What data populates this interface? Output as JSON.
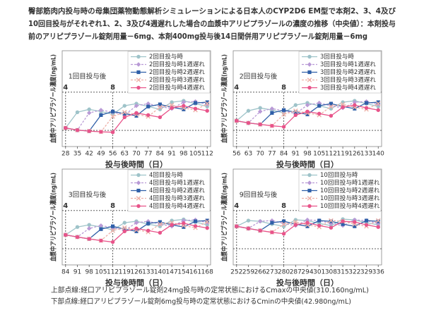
{
  "title": [
    "臀部筋肉内投与時の母集団薬物動態解析シミュレーションによる日本人のCYP2D6 EM型で本剤2、3、4及び",
    "10回目投与がそれぞれ1、2、3及び4週遅れした場合の血漿中アリピプラゾールの濃度の推移（中央値）：本剤投与",
    "前のアリピプラゾール錠剤用量－6mg、本剤400mg投与後14日間併用アリピプラゾール錠剤用量－6mg"
  ],
  "chart_data": [
    {
      "type": "line",
      "annotation": "1回目投与後",
      "ylabel": "血漿中アリピプラゾール濃度(ng/mL)",
      "xlabel": "投与後時間（日）",
      "x": [
        28,
        35,
        42,
        49,
        56,
        63,
        70,
        77,
        84,
        91,
        98,
        105,
        112
      ],
      "xticks": [
        28,
        35,
        42,
        49,
        56,
        63,
        70,
        77,
        84,
        91,
        98,
        105,
        112
      ],
      "xlim": [
        26,
        114
      ],
      "ylim": [
        -70,
        600
      ],
      "hlines": [
        310.16,
        42.98
      ],
      "vlines": [
        {
          "value": 28,
          "label": "4"
        },
        {
          "value": 56,
          "label": "8"
        }
      ],
      "series": [
        {
          "name": "2回目投与時",
          "color": "#9ec3c9",
          "marker": "circle",
          "dash": false,
          "values": [
            60,
            170,
            190,
            175,
            155,
            215,
            230,
            210,
            190,
            240,
            250,
            230,
            210
          ]
        },
        {
          "name": "2回目投与時1週遅れ",
          "color": "#b99ad6",
          "marker": "diamond",
          "dash": true,
          "values": [
            60,
            45,
            165,
            185,
            170,
            150,
            215,
            230,
            210,
            195,
            240,
            245,
            225
          ]
        },
        {
          "name": "2回目投与時2週遅れ",
          "color": "#2f5fa8",
          "marker": "square",
          "dash": false,
          "values": [
            60,
            45,
            38,
            150,
            175,
            160,
            145,
            210,
            225,
            205,
            190,
            235,
            240
          ]
        },
        {
          "name": "2回目投与時3週遅れ",
          "color": "#eeb1a8",
          "marker": "x",
          "dash": true,
          "values": [
            60,
            45,
            38,
            33,
            140,
            170,
            155,
            140,
            205,
            220,
            200,
            185,
            230
          ]
        },
        {
          "name": "2回目投与時4週遅れ",
          "color": "#e8548a",
          "marker": "circle",
          "dash": false,
          "values": [
            60,
            45,
            38,
            33,
            30,
            135,
            165,
            150,
            135,
            200,
            215,
            195,
            180
          ]
        }
      ]
    },
    {
      "type": "line",
      "annotation": "2回目投与後",
      "ylabel": "血漿中アリピプラゾール濃度(ng/mL)",
      "xlabel": "投与後時間（日）",
      "x": [
        56,
        63,
        70,
        77,
        84,
        91,
        98,
        105,
        112,
        119,
        126,
        133,
        140
      ],
      "xticks": [
        56,
        63,
        70,
        77,
        84,
        91,
        98,
        105,
        112,
        119,
        126,
        133,
        140
      ],
      "xlim": [
        54,
        142
      ],
      "ylim": [
        -70,
        600
      ],
      "hlines": [
        310.16,
        42.98
      ],
      "vlines": [
        {
          "value": 56,
          "label": "4"
        },
        {
          "value": 84,
          "label": "8"
        }
      ],
      "series": [
        {
          "name": "3回目投与時",
          "color": "#9ec3c9",
          "marker": "circle",
          "dash": false,
          "values": [
            110,
            180,
            200,
            185,
            165,
            220,
            235,
            215,
            195,
            240,
            250,
            230,
            210
          ]
        },
        {
          "name": "3回目投与時1週遅れ",
          "color": "#b99ad6",
          "marker": "diamond",
          "dash": true,
          "values": [
            110,
            95,
            175,
            195,
            180,
            160,
            220,
            235,
            215,
            200,
            240,
            245,
            225
          ]
        },
        {
          "name": "3回目投与時2週遅れ",
          "color": "#2f5fa8",
          "marker": "square",
          "dash": false,
          "values": [
            110,
            95,
            85,
            165,
            185,
            170,
            155,
            215,
            230,
            210,
            195,
            235,
            240
          ]
        },
        {
          "name": "3回目投与時3週遅れ",
          "color": "#eeb1a8",
          "marker": "x",
          "dash": true,
          "values": [
            110,
            95,
            85,
            75,
            155,
            180,
            165,
            150,
            210,
            225,
            205,
            190,
            230
          ]
        },
        {
          "name": "3回目投与時4週遅れ",
          "color": "#e8548a",
          "marker": "circle",
          "dash": false,
          "values": [
            110,
            95,
            85,
            75,
            68,
            150,
            175,
            160,
            145,
            205,
            220,
            200,
            185
          ]
        }
      ]
    },
    {
      "type": "line",
      "annotation": "3回目投与後",
      "ylabel": "血漿中アリピプラゾール濃度(ng/mL)",
      "xlabel": "投与後時間（日）",
      "x": [
        84,
        91,
        98,
        105,
        112,
        119,
        126,
        133,
        140,
        147,
        154,
        161,
        168
      ],
      "xticks": [
        84,
        91,
        98,
        105,
        112,
        119,
        126,
        133,
        140,
        147,
        154,
        161,
        168
      ],
      "xlim": [
        82,
        170
      ],
      "ylim": [
        -70,
        600
      ],
      "hlines": [
        310.16,
        42.98
      ],
      "vlines": [
        {
          "value": 84,
          "label": "4"
        },
        {
          "value": 112,
          "label": "8"
        }
      ],
      "series": [
        {
          "name": "4回目投与時",
          "color": "#9ec3c9",
          "marker": "circle",
          "dash": false,
          "values": [
            140,
            195,
            210,
            195,
            175,
            225,
            235,
            215,
            200,
            240,
            248,
            230,
            210
          ]
        },
        {
          "name": "4回目投与時1週遅れ",
          "color": "#b99ad6",
          "marker": "diamond",
          "dash": true,
          "values": [
            140,
            125,
            185,
            205,
            190,
            170,
            225,
            235,
            215,
            200,
            240,
            245,
            225
          ]
        },
        {
          "name": "4回目投与時2週遅れ",
          "color": "#2f5fa8",
          "marker": "square",
          "dash": false,
          "values": [
            140,
            125,
            112,
            180,
            200,
            180,
            165,
            220,
            230,
            210,
            195,
            235,
            240
          ]
        },
        {
          "name": "4回目投与時3週遅れ",
          "color": "#eeb1a8",
          "marker": "x",
          "dash": true,
          "values": [
            140,
            125,
            112,
            100,
            170,
            190,
            175,
            160,
            215,
            225,
            205,
            190,
            232
          ]
        },
        {
          "name": "4回目投与時4週遅れ",
          "color": "#e8548a",
          "marker": "circle",
          "dash": false,
          "values": [
            140,
            125,
            112,
            100,
            90,
            165,
            185,
            170,
            155,
            210,
            222,
            202,
            188
          ]
        }
      ]
    },
    {
      "type": "line",
      "annotation": "9回目投与後",
      "ylabel": "血漿中アリピプラゾール濃度(ng/mL)",
      "xlabel": "投与後時間（日）",
      "x": [
        252,
        259,
        266,
        273,
        280,
        287,
        294,
        301,
        308,
        315,
        322,
        329,
        336
      ],
      "xticks": [
        252,
        259,
        266,
        273,
        280,
        287,
        294,
        301,
        308,
        315,
        322,
        329,
        336
      ],
      "xlim": [
        250,
        338
      ],
      "ylim": [
        -70,
        600
      ],
      "hlines": [
        310.16,
        42.98
      ],
      "vlines": [
        {
          "value": 252,
          "label": "4"
        },
        {
          "value": 280,
          "label": "8"
        }
      ],
      "series": [
        {
          "name": "10回目投与時",
          "color": "#9ec3c9",
          "marker": "circle",
          "dash": false,
          "values": [
            200,
            240,
            235,
            215,
            200,
            245,
            240,
            220,
            205,
            250,
            245,
            225,
            210
          ]
        },
        {
          "name": "10回目投与時1週遅れ",
          "color": "#b99ad6",
          "marker": "diamond",
          "dash": true,
          "values": [
            200,
            185,
            235,
            240,
            220,
            205,
            245,
            240,
            220,
            205,
            245,
            240,
            220
          ]
        },
        {
          "name": "10回目投与時2週遅れ",
          "color": "#2f5fa8",
          "marker": "square",
          "dash": false,
          "values": [
            200,
            185,
            170,
            225,
            235,
            215,
            200,
            240,
            235,
            215,
            200,
            240,
            235
          ]
        },
        {
          "name": "10回目投与時3週遅れ",
          "color": "#eeb1a8",
          "marker": "x",
          "dash": true,
          "values": [
            200,
            185,
            170,
            158,
            215,
            230,
            210,
            195,
            240,
            235,
            215,
            200,
            240
          ]
        },
        {
          "name": "10回目投与時4週遅れ",
          "color": "#e8548a",
          "marker": "circle",
          "dash": false,
          "values": [
            200,
            185,
            170,
            158,
            148,
            210,
            225,
            205,
            190,
            235,
            230,
            210,
            195
          ]
        }
      ]
    }
  ],
  "footnotes": [
    "上部点線:経口アリピプラゾール錠剤24mg投与時の定常状態におけるCmaxの中央値(310.160ng/mL)",
    "下部点線:経口アリピプラゾール錠剤6mg投与時の定常状態におけるCminの中央値(42.980ng/mL)"
  ]
}
